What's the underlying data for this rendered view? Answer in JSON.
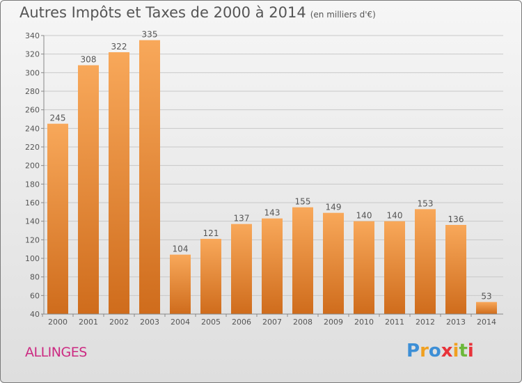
{
  "title": "Autres Impôts et Taxes de 2000 à 2014",
  "subtitle": "(en milliers d'€)",
  "commune": "ALLINGES",
  "logo": {
    "text": "Proxiti",
    "letters": [
      "P",
      "r",
      "o",
      "x",
      "i",
      "t",
      "i"
    ],
    "colors": [
      "#3d8fd6",
      "#f0a020",
      "#3d8fd6",
      "#e8333a",
      "#f0a020",
      "#6cb83a",
      "#e8333a"
    ]
  },
  "colors": {
    "bar_light": "#f8a85a",
    "bar_dark": "#cf6c1c",
    "grid": "#c8c8c8",
    "text": "#555555",
    "commune": "#cc2a82"
  },
  "chart_data": {
    "type": "bar",
    "categories": [
      "2000",
      "2001",
      "2002",
      "2003",
      "2004",
      "2005",
      "2006",
      "2007",
      "2008",
      "2009",
      "2010",
      "2011",
      "2012",
      "2013",
      "2014"
    ],
    "values": [
      245,
      308,
      322,
      335,
      104,
      121,
      137,
      143,
      155,
      149,
      140,
      140,
      153,
      136,
      53
    ],
    "ylim": [
      40,
      340
    ],
    "yticks": [
      40,
      60,
      80,
      100,
      120,
      140,
      160,
      180,
      200,
      220,
      240,
      260,
      280,
      300,
      320,
      340
    ],
    "grid": true
  }
}
